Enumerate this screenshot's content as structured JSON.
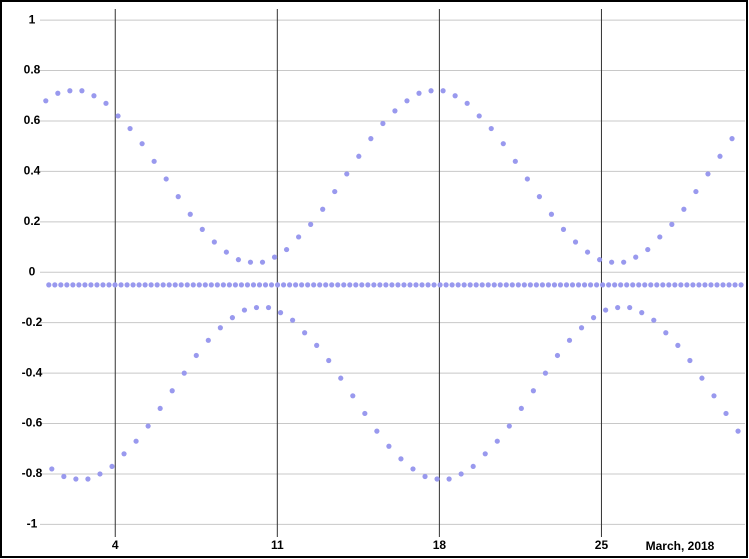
{
  "chart_data": {
    "type": "scatter",
    "xlabel": "March, 2018",
    "color": "#9999ee",
    "x": [
      1,
      1.13,
      1.26,
      1.39,
      1.52,
      1.65,
      1.78,
      1.91,
      2.04,
      2.17,
      2.3,
      2.43,
      2.56,
      2.69,
      2.82,
      2.95,
      3.08,
      3.21,
      3.34,
      3.47,
      3.6,
      3.73,
      3.86,
      3.99,
      4.12,
      4.25,
      4.38,
      4.51,
      4.64,
      4.77,
      4.9,
      5.03,
      5.16,
      5.29,
      5.42,
      5.55,
      5.68,
      5.81,
      5.94,
      6.07,
      6.2,
      6.33,
      6.46,
      6.59,
      6.72,
      6.85,
      6.98,
      7.11,
      7.24,
      7.37,
      7.5,
      7.63,
      7.76,
      7.89,
      8.02,
      8.15,
      8.28,
      8.41,
      8.54,
      8.67,
      8.8,
      8.93,
      9.06,
      9.19,
      9.32,
      9.45,
      9.58,
      9.71,
      9.84,
      9.97,
      10.1,
      10.23,
      10.36,
      10.49,
      10.62,
      10.75,
      10.88,
      11.01,
      11.14,
      11.27,
      11.4,
      11.53,
      11.66,
      11.79,
      11.92,
      12.05,
      12.18,
      12.31,
      12.44,
      12.57,
      12.7,
      12.83,
      12.96,
      13.09,
      13.22,
      13.35,
      13.48,
      13.61,
      13.74,
      13.87,
      14,
      14.13,
      14.26,
      14.39,
      14.52,
      14.65,
      14.78,
      14.91,
      15.04,
      15.17,
      15.3,
      15.43,
      15.56,
      15.69,
      15.82,
      15.95,
      16.08,
      16.21,
      16.34,
      16.47,
      16.6,
      16.73,
      16.86,
      16.99,
      17.12,
      17.25,
      17.38,
      17.51,
      17.64,
      17.77,
      17.9,
      18.03,
      18.16,
      18.29,
      18.42,
      18.55,
      18.68,
      18.81,
      18.94,
      19.07,
      19.2,
      19.33,
      19.46,
      19.59,
      19.72,
      19.85,
      19.98,
      20.11,
      20.24,
      20.37,
      20.5,
      20.63,
      20.76,
      20.89,
      21.02,
      21.15,
      21.28,
      21.41,
      21.54,
      21.67,
      21.8,
      21.93,
      22.06,
      22.19,
      22.32,
      22.45,
      22.58,
      22.71,
      22.84,
      22.97,
      23.1,
      23.23,
      23.36,
      23.49,
      23.62,
      23.75,
      23.88,
      24.01,
      24.14,
      24.27,
      24.4,
      24.53,
      24.66,
      24.79,
      24.92,
      25.05,
      25.18,
      25.31,
      25.44,
      25.57,
      25.7,
      25.83,
      25.96,
      26.09,
      26.22,
      26.35,
      26.48,
      26.61,
      26.74,
      26.87,
      27,
      27.13,
      27.26,
      27.39,
      27.52,
      27.65,
      27.78,
      27.91,
      28.04,
      28.17,
      28.3,
      28.43,
      28.56,
      28.69,
      28.82,
      28.95,
      29.08,
      29.21,
      29.34,
      29.47,
      29.6,
      29.73,
      29.86,
      29.99,
      30.12,
      30.25,
      30.38,
      30.51,
      30.64,
      30.77,
      30.9,
      31.03
    ],
    "values": [
      0.68,
      -0.05,
      -0.78,
      -0.05,
      0.71,
      -0.05,
      -0.81,
      -0.05,
      0.72,
      -0.05,
      -0.82,
      -0.05,
      0.72,
      -0.05,
      -0.82,
      -0.05,
      0.7,
      -0.05,
      -0.8,
      -0.05,
      0.67,
      -0.05,
      -0.77,
      -0.05,
      0.62,
      -0.05,
      -0.72,
      -0.05,
      0.57,
      -0.05,
      -0.67,
      -0.05,
      0.51,
      -0.05,
      -0.61,
      -0.05,
      0.44,
      -0.05,
      -0.54,
      -0.05,
      0.37,
      -0.05,
      -0.47,
      -0.05,
      0.3,
      -0.05,
      -0.4,
      -0.05,
      0.23,
      -0.05,
      -0.33,
      -0.05,
      0.17,
      -0.05,
      -0.27,
      -0.05,
      0.12,
      -0.05,
      -0.22,
      -0.05,
      0.08,
      -0.05,
      -0.18,
      -0.05,
      0.05,
      -0.05,
      -0.15,
      -0.05,
      0.04,
      -0.05,
      -0.14,
      -0.05,
      0.04,
      -0.05,
      -0.14,
      -0.05,
      0.06,
      -0.05,
      -0.16,
      -0.05,
      0.09,
      -0.05,
      -0.19,
      -0.05,
      0.14,
      -0.05,
      -0.24,
      -0.05,
      0.19,
      -0.05,
      -0.29,
      -0.05,
      0.25,
      -0.05,
      -0.35,
      -0.05,
      0.32,
      -0.05,
      -0.42,
      -0.05,
      0.39,
      -0.05,
      -0.49,
      -0.05,
      0.46,
      -0.05,
      -0.56,
      -0.05,
      0.53,
      -0.05,
      -0.63,
      -0.05,
      0.59,
      -0.05,
      -0.69,
      -0.05,
      0.64,
      -0.05,
      -0.74,
      -0.05,
      0.68,
      -0.05,
      -0.78,
      -0.05,
      0.71,
      -0.05,
      -0.81,
      -0.05,
      0.72,
      -0.05,
      -0.82,
      -0.05,
      0.72,
      -0.05,
      -0.82,
      -0.05,
      0.7,
      -0.05,
      -0.8,
      -0.05,
      0.67,
      -0.05,
      -0.77,
      -0.05,
      0.62,
      -0.05,
      -0.72,
      -0.05,
      0.57,
      -0.05,
      -0.67,
      -0.05,
      0.51,
      -0.05,
      -0.61,
      -0.05,
      0.44,
      -0.05,
      -0.54,
      -0.05,
      0.37,
      -0.05,
      -0.47,
      -0.05,
      0.3,
      -0.05,
      -0.4,
      -0.05,
      0.23,
      -0.05,
      -0.33,
      -0.05,
      0.17,
      -0.05,
      -0.27,
      -0.05,
      0.12,
      -0.05,
      -0.22,
      -0.05,
      0.08,
      -0.05,
      -0.18,
      -0.05,
      0.05,
      -0.05,
      -0.15,
      -0.05,
      0.04,
      -0.05,
      -0.14,
      -0.05,
      0.04,
      -0.05,
      -0.14,
      -0.05,
      0.06,
      -0.05,
      -0.16,
      -0.05,
      0.09,
      -0.05,
      -0.19,
      -0.05,
      0.14,
      -0.05,
      -0.24,
      -0.05,
      0.19,
      -0.05,
      -0.29,
      -0.05,
      0.25,
      -0.05,
      -0.35,
      -0.05,
      0.32,
      -0.05,
      -0.42,
      -0.05,
      0.39,
      -0.05,
      -0.49,
      -0.05,
      0.46,
      -0.05,
      -0.56,
      -0.05,
      0.53,
      -0.05,
      -0.63,
      -0.05
    ],
    "xlim": [
      0.75,
      31.2
    ],
    "xticks": [
      4,
      11,
      18,
      25
    ],
    "ylim": [
      -1.05,
      1.06
    ],
    "yticks": [
      -1,
      -0.8,
      -0.6,
      -0.4,
      -0.2,
      0,
      0.2,
      0.4,
      0.6,
      0.8,
      1
    ],
    "grid": true
  }
}
